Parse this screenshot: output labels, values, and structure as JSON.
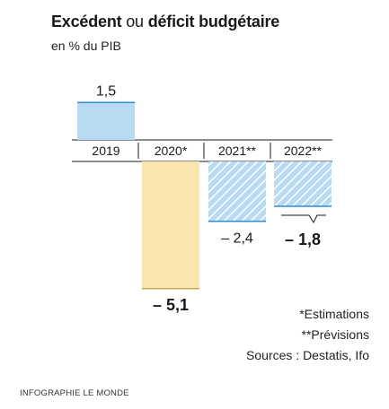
{
  "title": {
    "part1": "Excédent",
    "connector": "ou",
    "part2": "déficit budgétaire"
  },
  "subtitle": "en % du PIB",
  "chart_data": {
    "type": "bar",
    "categories": [
      "2019",
      "2020*",
      "2021**",
      "2022**"
    ],
    "values": [
      1.5,
      -5.1,
      -2.4,
      -1.8
    ],
    "value_labels": [
      "1,5",
      "– 5,1",
      "– 2,4",
      "– 1,8"
    ],
    "bold_labels": [
      false,
      true,
      false,
      true
    ],
    "styles": [
      "solid-blue",
      "solid-yellow",
      "hatched-blue",
      "hatched-blue"
    ],
    "colors": {
      "blue_fill": "#b8daf3",
      "blue_line": "#2d8fd0",
      "yellow_fill": "#fbe6b0",
      "yellow_line": "#c9a84c",
      "hatch": "#ffffff"
    },
    "title": "Excédent ou déficit budgétaire",
    "ylabel": "en % du PIB",
    "ylim": [
      -5.1,
      1.5
    ]
  },
  "notes": [
    "*Estimations",
    "**Prévisions",
    "Sources : Destatis, Ifo"
  ],
  "credit": "INFOGRAPHIE LE MONDE"
}
